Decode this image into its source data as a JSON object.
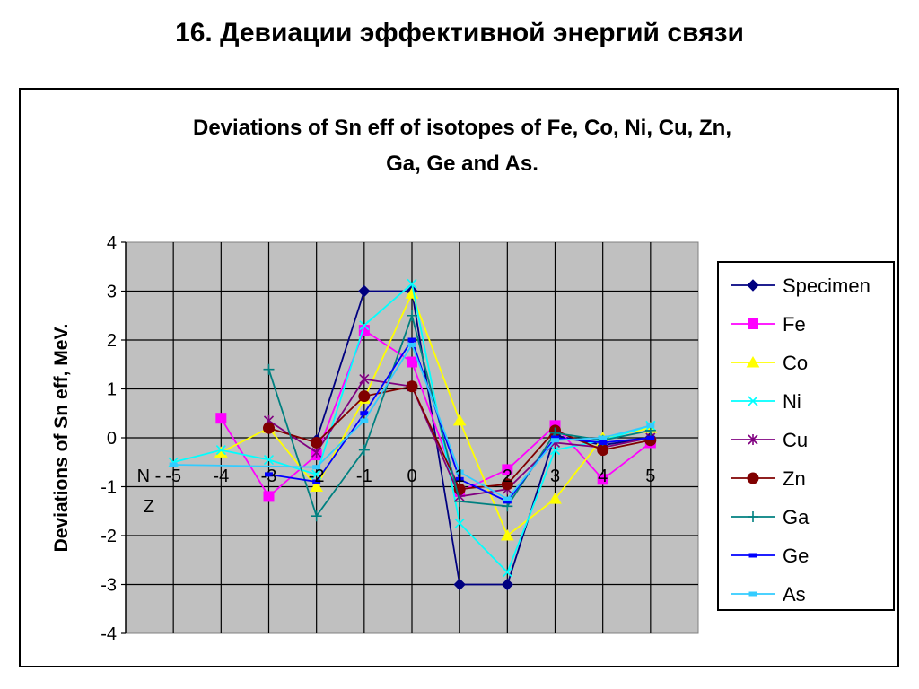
{
  "slide_title": "16. Девиации эффективной энергий связи",
  "chart_data": {
    "type": "line",
    "title_lines": [
      "Deviations of Sn eff of isotopes of Fe, Co, Ni, Cu, Zn,",
      "Ga, Ge and As."
    ],
    "xlabel": "N - Z",
    "ylabel": "Deviations of Sn eff, MeV.",
    "x_ticks": [
      "-5",
      "-4",
      "-3",
      "-2",
      "-1",
      "0",
      "1",
      "2",
      "3",
      "4",
      "5"
    ],
    "xlim": [
      -6,
      6
    ],
    "ylim": [
      -4,
      4
    ],
    "y_ticks": [
      "4",
      "3",
      "2",
      "1",
      "0",
      "-1",
      "-2",
      "-3",
      "-4"
    ],
    "grid": true,
    "plot_background": "#c0c0c0",
    "legend_position": "right",
    "series": [
      {
        "name": "Specimen",
        "color": "#000080",
        "marker": "diamond",
        "points": [
          [
            -2,
            -0.05
          ],
          [
            -1,
            3.0
          ],
          [
            0,
            3.0
          ],
          [
            1,
            -3.0
          ],
          [
            2,
            -3.0
          ],
          [
            3,
            0.05
          ],
          [
            4,
            -0.15
          ],
          [
            5,
            0.0
          ]
        ]
      },
      {
        "name": "Fe",
        "color": "#ff00ff",
        "marker": "square",
        "points": [
          [
            -4,
            0.4
          ],
          [
            -3,
            -1.2
          ],
          [
            -2,
            -0.35
          ],
          [
            -1,
            2.2
          ],
          [
            0,
            1.55
          ],
          [
            1,
            -1.1
          ],
          [
            2,
            -0.65
          ],
          [
            3,
            0.25
          ],
          [
            4,
            -0.85
          ],
          [
            5,
            -0.1
          ]
        ]
      },
      {
        "name": "Co",
        "color": "#ffff00",
        "marker": "triangle",
        "points": [
          [
            -4,
            -0.3
          ],
          [
            -3,
            0.2
          ],
          [
            -2,
            -1.0
          ],
          [
            -1,
            0.8
          ],
          [
            0,
            2.95
          ],
          [
            1,
            0.35
          ],
          [
            2,
            -2.0
          ],
          [
            3,
            -1.25
          ],
          [
            4,
            0.0
          ],
          [
            5,
            0.2
          ]
        ]
      },
      {
        "name": "Ni",
        "color": "#00ffff",
        "marker": "x",
        "points": [
          [
            -5,
            -0.5
          ],
          [
            -4,
            -0.25
          ],
          [
            -3,
            -0.45
          ],
          [
            -2,
            -0.75
          ],
          [
            -1,
            2.3
          ],
          [
            0,
            3.15
          ],
          [
            1,
            -1.75
          ],
          [
            2,
            -2.75
          ],
          [
            3,
            -0.25
          ],
          [
            4,
            -0.05
          ],
          [
            5,
            0.25
          ]
        ]
      },
      {
        "name": "Cu",
        "color": "#800080",
        "marker": "star",
        "points": [
          [
            -3,
            0.35
          ],
          [
            -2,
            -0.3
          ],
          [
            -1,
            1.2
          ],
          [
            0,
            1.05
          ],
          [
            1,
            -1.2
          ],
          [
            2,
            -1.05
          ],
          [
            3,
            -0.1
          ],
          [
            4,
            -0.2
          ],
          [
            5,
            0.0
          ]
        ]
      },
      {
        "name": "Zn",
        "color": "#800000",
        "marker": "circle",
        "points": [
          [
            -3,
            0.2
          ],
          [
            -2,
            -0.1
          ],
          [
            -1,
            0.85
          ],
          [
            0,
            1.05
          ],
          [
            1,
            -1.05
          ],
          [
            2,
            -0.95
          ],
          [
            3,
            0.15
          ],
          [
            4,
            -0.25
          ],
          [
            5,
            -0.05
          ]
        ]
      },
      {
        "name": "Ga",
        "color": "#008080",
        "marker": "plus",
        "points": [
          [
            -3,
            1.4
          ],
          [
            -2,
            -1.6
          ],
          [
            -1,
            -0.25
          ],
          [
            0,
            2.5
          ],
          [
            1,
            -1.3
          ],
          [
            2,
            -1.4
          ],
          [
            3,
            0.1
          ],
          [
            4,
            -0.05
          ],
          [
            5,
            0.15
          ]
        ]
      },
      {
        "name": "Ge",
        "color": "#0000ff",
        "marker": "dash",
        "points": [
          [
            -3,
            -0.75
          ],
          [
            -2,
            -0.9
          ],
          [
            -1,
            0.5
          ],
          [
            0,
            2.0
          ],
          [
            1,
            -0.85
          ],
          [
            2,
            -1.3
          ],
          [
            3,
            0.0
          ],
          [
            4,
            -0.1
          ],
          [
            5,
            0.0
          ]
        ]
      },
      {
        "name": "As",
        "color": "#33ccff",
        "marker": "dash",
        "points": [
          [
            -5,
            -0.55
          ],
          [
            -2,
            -0.6
          ],
          [
            -1,
            0.35
          ],
          [
            0,
            1.9
          ],
          [
            1,
            -0.7
          ],
          [
            2,
            -1.25
          ],
          [
            3,
            -0.05
          ],
          [
            4,
            0.0
          ],
          [
            5,
            0.25
          ]
        ]
      }
    ]
  }
}
